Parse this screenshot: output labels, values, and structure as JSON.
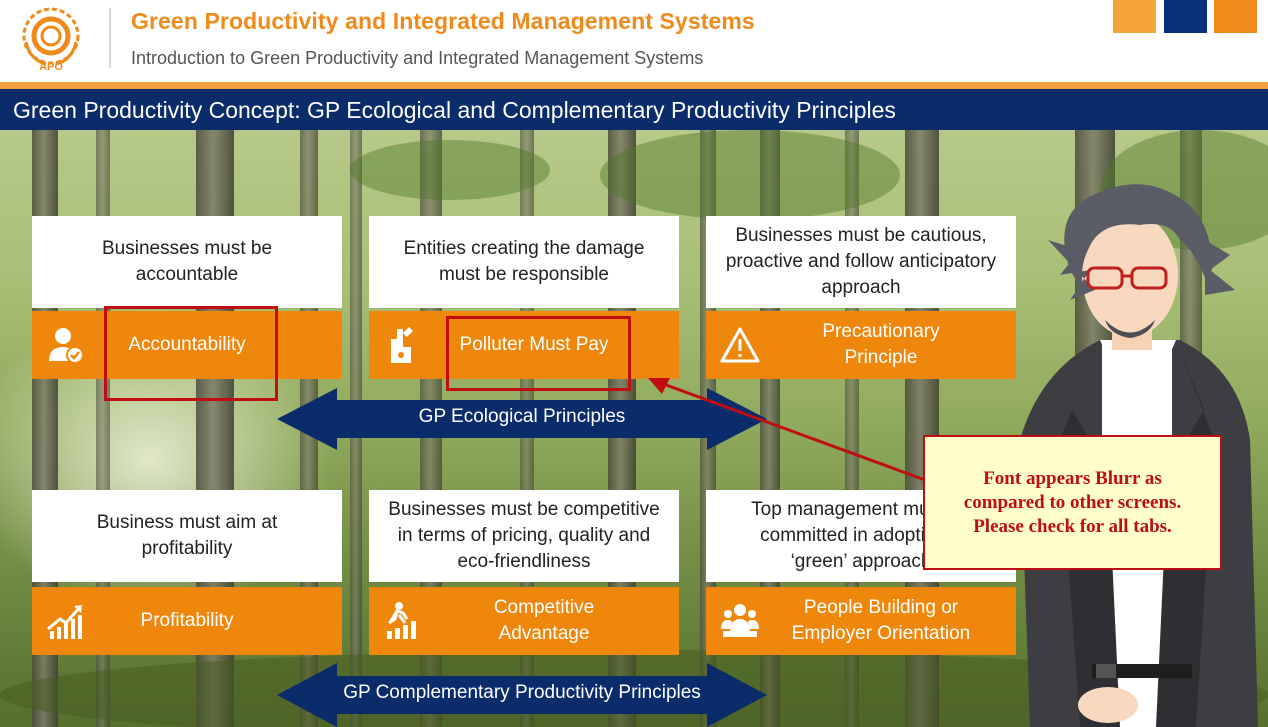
{
  "header": {
    "logo_text": "APO",
    "title": "Green Productivity and Integrated Management Systems",
    "subtitle": "Introduction to Green Productivity and Integrated Management Systems"
  },
  "slide": {
    "title": "Green Productivity Concept: GP Ecological and Complementary Productivity Principles"
  },
  "ecological": {
    "arrow_label": "GP Ecological Principles",
    "cards": [
      {
        "description": "Businesses must be accountable",
        "label": "Accountability",
        "icon": "person-check-icon"
      },
      {
        "description": "Entities creating the damage must be responsible",
        "label": "Polluter Must Pay",
        "icon": "factory-icon"
      },
      {
        "description": "Businesses must be cautious, proactive and follow anticipatory approach",
        "label": "Precautionary Principle",
        "icon": "warning-icon"
      }
    ]
  },
  "complementary": {
    "arrow_label": "GP Complementary Productivity Principles",
    "cards": [
      {
        "description": "Business must aim at profitability",
        "label": "Profitability",
        "icon": "growth-chart-icon"
      },
      {
        "description": "Businesses must be competitive in terms of pricing, quality and eco-friendliness",
        "label": "Competitive Advantage",
        "icon": "runner-bars-icon"
      },
      {
        "description": "Top management must be committed in adopting a ‘green’ approach",
        "label": "People Building or Employer Orientation",
        "icon": "team-icon"
      }
    ]
  },
  "annotation": {
    "note": "Font appears Blurr as compared to other screens. Please check for all tabs."
  },
  "colors": {
    "orange": "#ef870d",
    "navy": "#0a2c6b",
    "annotation_red": "#c00d12",
    "note_bg": "#ffffcc"
  }
}
